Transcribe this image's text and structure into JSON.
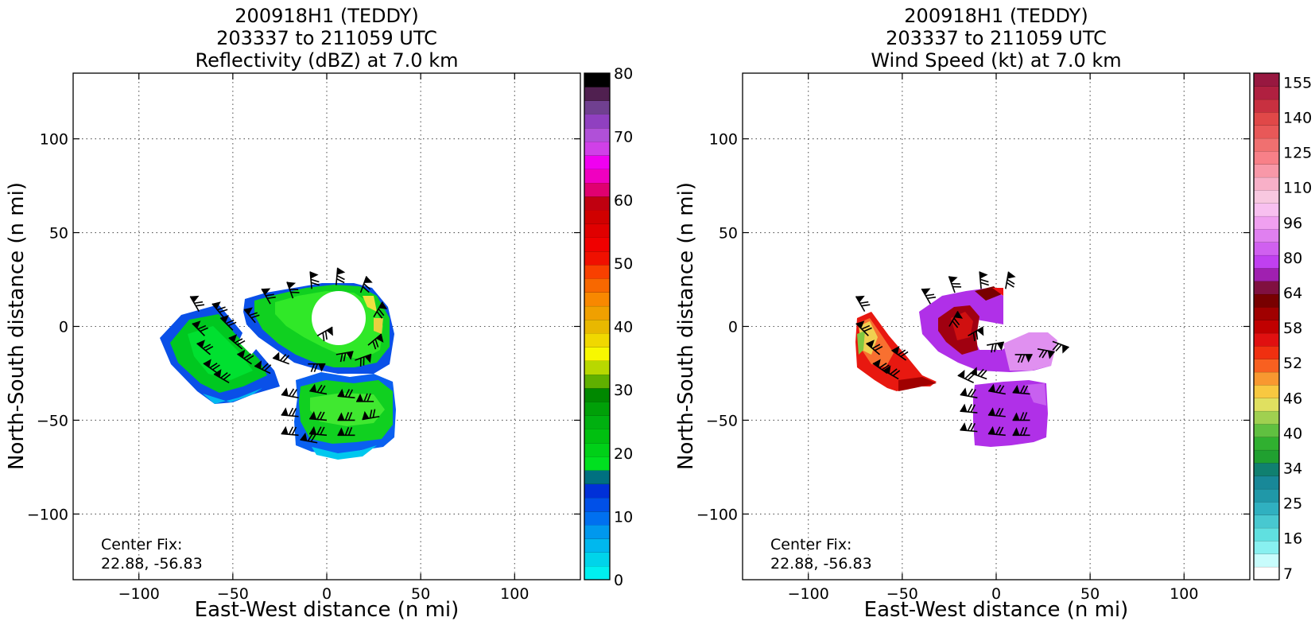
{
  "panels": [
    {
      "title_lines": [
        "200918H1 (TEDDY)",
        "203337 to 211059 UTC",
        "Reflectivity (dBZ) at 7.0 km"
      ],
      "xlabel": "East-West distance (n mi)",
      "ylabel": "North-South distance (n mi)",
      "center_fix_lines": [
        "Center Fix:",
        "22.88, -56.83"
      ],
      "xticks": [
        -100,
        -50,
        0,
        50,
        100
      ],
      "yticks": [
        -100,
        -50,
        0,
        50,
        100
      ],
      "colorbar": {
        "ticks": [
          0,
          10,
          20,
          30,
          40,
          50,
          60,
          70,
          80
        ],
        "colors": [
          "#00f0f0",
          "#00d4ea",
          "#00b8ee",
          "#0098ee",
          "#0070f0",
          "#0050e8",
          "#0030d8",
          "#007080",
          "#00e020",
          "#00d018",
          "#00c010",
          "#00b010",
          "#00a008",
          "#008800",
          "#60b000",
          "#b8d800",
          "#f8f800",
          "#f0d800",
          "#e8b800",
          "#f0a000",
          "#f88800",
          "#f86800",
          "#f84000",
          "#f01000",
          "#f00000",
          "#e00000",
          "#d00000",
          "#c00010",
          "#e00070",
          "#f000c0",
          "#f000f0",
          "#d040e8",
          "#b050d8",
          "#9040c0",
          "#704090",
          "#502050",
          "#000000"
        ]
      },
      "wind_barbs": "black"
    },
    {
      "title_lines": [
        "200918H1 (TEDDY)",
        "203337 to 211059 UTC",
        "Wind Speed (kt) at 7.0 km"
      ],
      "xlabel": "East-West distance (n mi)",
      "ylabel": "North-South distance (n mi)",
      "center_fix_lines": [
        "Center Fix:",
        "22.88, -56.83"
      ],
      "xticks": [
        -100,
        -50,
        0,
        50,
        100
      ],
      "yticks": [
        -100,
        -50,
        0,
        50,
        100
      ],
      "colorbar": {
        "ticks": [
          7,
          16,
          25,
          34,
          40,
          46,
          52,
          58,
          64,
          80,
          96,
          110,
          125,
          140,
          155
        ],
        "colors": [
          "#ffffff",
          "#c8fcfc",
          "#88f0f0",
          "#60e0e0",
          "#48c8d0",
          "#30b0c0",
          "#2098a8",
          "#188898",
          "#108070",
          "#20a030",
          "#30b030",
          "#60c040",
          "#a0d050",
          "#e0e060",
          "#f8c840",
          "#f89830",
          "#f86020",
          "#f03010",
          "#e01010",
          "#c00000",
          "#a00000",
          "#780000",
          "#801040",
          "#a020b0",
          "#c040f0",
          "#d060f0",
          "#e080f0",
          "#f0a0f0",
          "#f8c0f0",
          "#f8c8e0",
          "#f8b0c8",
          "#f898a8",
          "#f88088",
          "#f07070",
          "#e85858",
          "#e04848",
          "#c83040",
          "#b02040",
          "#981840"
        ]
      },
      "wind_barbs": "black"
    }
  ]
}
